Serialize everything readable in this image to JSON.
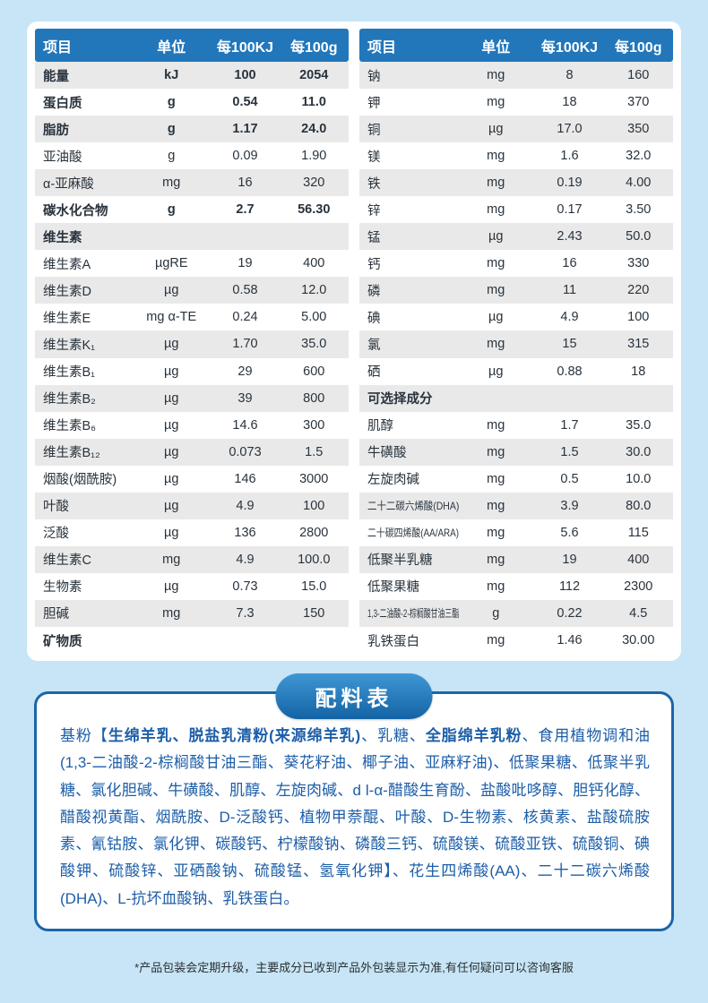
{
  "colors": {
    "page_background": "#c7e5f6",
    "header_blue": "#2277bb",
    "row_alt": "#e9e9e9",
    "panel_border_blue": "#1a66a9",
    "ingredients_text_blue": "#1c5ea8"
  },
  "table": {
    "header": {
      "item": "项目",
      "unit": "单位",
      "per100kj": "每100KJ",
      "per100g": "每100g"
    },
    "left_rows": [
      {
        "name": "能量",
        "unit": "kJ",
        "kj": "100",
        "g": "2054",
        "bold": true
      },
      {
        "name": "蛋白质",
        "unit": "g",
        "kj": "0.54",
        "g": "11.0",
        "bold": true
      },
      {
        "name": "脂肪",
        "unit": "g",
        "kj": "1.17",
        "g": "24.0",
        "bold": true
      },
      {
        "name": "亚油酸",
        "unit": "g",
        "kj": "0.09",
        "g": "1.90"
      },
      {
        "name": "α-亚麻酸",
        "unit": "mg",
        "kj": "16",
        "g": "320"
      },
      {
        "name": "碳水化合物",
        "unit": "g",
        "kj": "2.7",
        "g": "56.30",
        "bold": true
      },
      {
        "name": "维生素",
        "unit": "",
        "kj": "",
        "g": "",
        "section": true
      },
      {
        "name": "维生素A",
        "unit": "µgRE",
        "kj": "19",
        "g": "400"
      },
      {
        "name": "维生素D",
        "unit": "µg",
        "kj": "0.58",
        "g": "12.0"
      },
      {
        "name": "维生素E",
        "unit": "mg α-TE",
        "kj": "0.24",
        "g": "5.00"
      },
      {
        "name": "维生素K₁",
        "unit": "µg",
        "kj": "1.70",
        "g": "35.0"
      },
      {
        "name": "维生素B₁",
        "unit": "µg",
        "kj": "29",
        "g": "600"
      },
      {
        "name": "维生素B₂",
        "unit": "µg",
        "kj": "39",
        "g": "800"
      },
      {
        "name": "维生素B₆",
        "unit": "µg",
        "kj": "14.6",
        "g": "300"
      },
      {
        "name": "维生素B₁₂",
        "unit": "µg",
        "kj": "0.073",
        "g": "1.5"
      },
      {
        "name": "烟酸(烟酰胺)",
        "unit": "µg",
        "kj": "146",
        "g": "3000"
      },
      {
        "name": "叶酸",
        "unit": "µg",
        "kj": "4.9",
        "g": "100"
      },
      {
        "name": "泛酸",
        "unit": "µg",
        "kj": "136",
        "g": "2800"
      },
      {
        "name": "维生素C",
        "unit": "mg",
        "kj": "4.9",
        "g": "100.0"
      },
      {
        "name": "生物素",
        "unit": "µg",
        "kj": "0.73",
        "g": "15.0"
      },
      {
        "name": "胆碱",
        "unit": "mg",
        "kj": "7.3",
        "g": "150"
      },
      {
        "name": "矿物质",
        "unit": "",
        "kj": "",
        "g": "",
        "section": true
      }
    ],
    "right_rows": [
      {
        "name": "钠",
        "unit": "mg",
        "kj": "8",
        "g": "160"
      },
      {
        "name": "钾",
        "unit": "mg",
        "kj": "18",
        "g": "370"
      },
      {
        "name": "铜",
        "unit": "µg",
        "kj": "17.0",
        "g": "350"
      },
      {
        "name": "镁",
        "unit": "mg",
        "kj": "1.6",
        "g": "32.0"
      },
      {
        "name": "铁",
        "unit": "mg",
        "kj": "0.19",
        "g": "4.00"
      },
      {
        "name": "锌",
        "unit": "mg",
        "kj": "0.17",
        "g": "3.50"
      },
      {
        "name": "锰",
        "unit": "µg",
        "kj": "2.43",
        "g": "50.0"
      },
      {
        "name": "钙",
        "unit": "mg",
        "kj": "16",
        "g": "330"
      },
      {
        "name": "磷",
        "unit": "mg",
        "kj": "11",
        "g": "220"
      },
      {
        "name": "碘",
        "unit": "µg",
        "kj": "4.9",
        "g": "100"
      },
      {
        "name": "氯",
        "unit": "mg",
        "kj": "15",
        "g": "315"
      },
      {
        "name": "硒",
        "unit": "µg",
        "kj": "0.88",
        "g": "18"
      },
      {
        "name": "可选择成分",
        "unit": "",
        "kj": "",
        "g": "",
        "section": true
      },
      {
        "name": "肌醇",
        "unit": "mg",
        "kj": "1.7",
        "g": "35.0"
      },
      {
        "name": "牛磺酸",
        "unit": "mg",
        "kj": "1.5",
        "g": "30.0"
      },
      {
        "name": "左旋肉碱",
        "unit": "mg",
        "kj": "0.5",
        "g": "10.0"
      },
      {
        "name": "二十二碳六烯酸(DHA)",
        "unit": "mg",
        "kj": "3.9",
        "g": "80.0",
        "compact": true
      },
      {
        "name": "二十碳四烯酸(AA/ARA)",
        "unit": "mg",
        "kj": "5.6",
        "g": "115",
        "compact": true
      },
      {
        "name": "低聚半乳糖",
        "unit": "mg",
        "kj": "19",
        "g": "400"
      },
      {
        "name": "低聚果糖",
        "unit": "mg",
        "kj": "112",
        "g": "2300"
      },
      {
        "name": "1,3-二油酸-2-棕榈酸甘油三酯",
        "unit": "g",
        "kj": "0.22",
        "g": "4.5",
        "compact": true
      },
      {
        "name": "乳铁蛋白",
        "unit": "mg",
        "kj": "1.46",
        "g": "30.00"
      }
    ]
  },
  "ingredients": {
    "title": "配料表",
    "segments": [
      {
        "text": "基粉【",
        "bold": false
      },
      {
        "text": "生绵羊乳、脱盐乳清粉(来源绵羊乳)",
        "bold": true
      },
      {
        "text": "、乳糖、",
        "bold": false
      },
      {
        "text": "全脂绵羊乳粉",
        "bold": true
      },
      {
        "text": "、食用植物调和油(1,3-二油酸-2-棕榈酸甘油三酯、葵花籽油、椰子油、亚麻籽油)、低聚果糖、低聚半乳糖、氯化胆碱、牛磺酸、肌醇、左旋肉碱、d l-α-醋酸生育酚、盐酸吡哆醇、胆钙化醇、醋酸视黄酯、烟酰胺、D-泛酸钙、植物甲萘醌、叶酸、D-生物素、核黄素、盐酸硫胺素、氰钴胺、氯化钾、碳酸钙、柠檬酸钠、磷酸三钙、硫酸镁、硫酸亚铁、硫酸铜、碘酸钾、硫酸锌、亚硒酸钠、硫酸锰、氢氧化钾】、花生四烯酸(AA)、二十二碳六烯酸(DHA)、L-抗坏血酸钠、乳铁蛋白。",
        "bold": false
      }
    ]
  },
  "footer": {
    "note": "*产品包装会定期升级，主要成分已收到产品外包装显示为准,有任何疑问可以咨询客服"
  }
}
